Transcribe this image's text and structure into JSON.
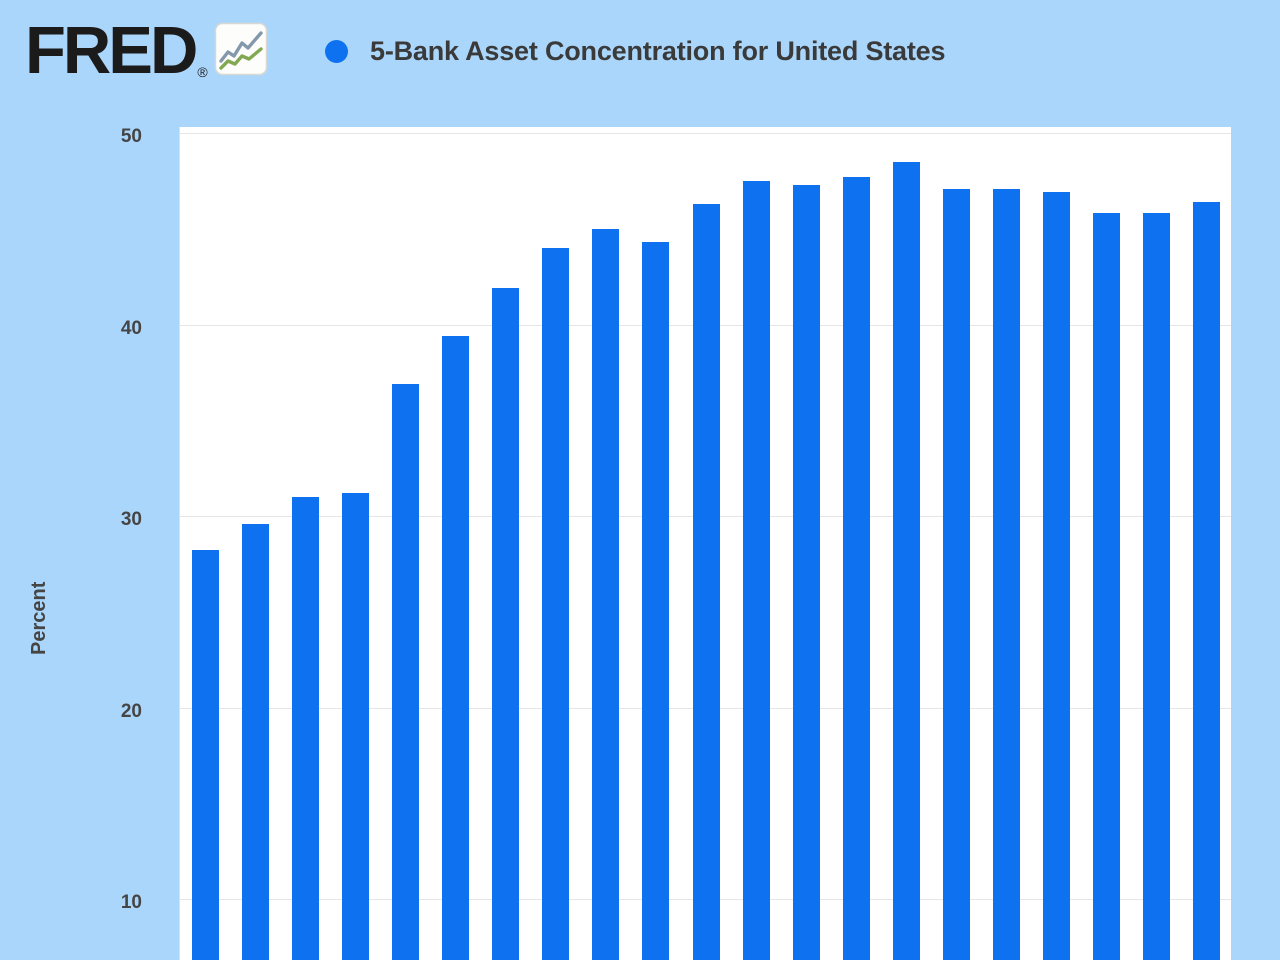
{
  "header": {
    "logo_text": "FRED",
    "registered_mark": "®",
    "series_title": "5-Bank Asset Concentration for United States"
  },
  "colors": {
    "page_background": "#abd6fc",
    "plot_background": "#ffffff",
    "bar": "#0e72f0",
    "legend_dot": "#0e72f0",
    "gridline": "#e6e6e6",
    "title_text": "#3a3a3a",
    "axis_text": "#454545",
    "logo_text": "#1b1b1b",
    "logo_icon_background": "#fdfdfb",
    "logo_icon_border": "#d8d8d2",
    "logo_icon_line_top": "#8398ab",
    "logo_icon_line_bottom": "#83a854"
  },
  "y_axis": {
    "label": "Percent",
    "ticks": [
      50,
      40,
      30,
      20,
      10
    ]
  },
  "chart_data": {
    "type": "bar",
    "title": "5-Bank Asset Concentration for United States",
    "xlabel": "",
    "ylabel": "Percent",
    "y_ticks": [
      10,
      20,
      30,
      40,
      50
    ],
    "ylim_visible_top": 50,
    "grid": "horizontal",
    "legend_position": "top",
    "x_tick_labels_visible": false,
    "values": [
      28.2,
      29.6,
      31.0,
      31.2,
      36.9,
      39.4,
      41.9,
      44.0,
      45.0,
      44.3,
      46.3,
      47.5,
      47.3,
      47.7,
      48.5,
      47.1,
      47.1,
      46.9,
      45.8,
      45.8,
      46.4
    ]
  }
}
